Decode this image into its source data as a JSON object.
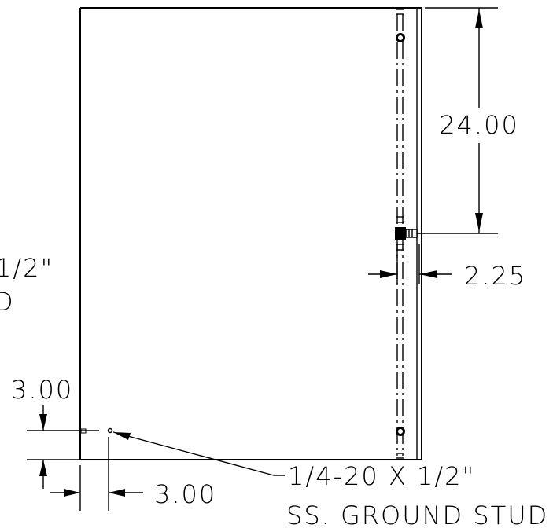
{
  "dimensions": {
    "hinge_spacing": "24.00",
    "hinge_offset": "2.25",
    "stud_from_bottom": "3.00",
    "stud_from_side": "3.00"
  },
  "callouts": {
    "stud_line1": "1/4-20 X 1/2\"",
    "stud_line2": "SS. GROUND STUD",
    "left_partial_line1": "1/2\"",
    "left_partial_line2": "D"
  }
}
